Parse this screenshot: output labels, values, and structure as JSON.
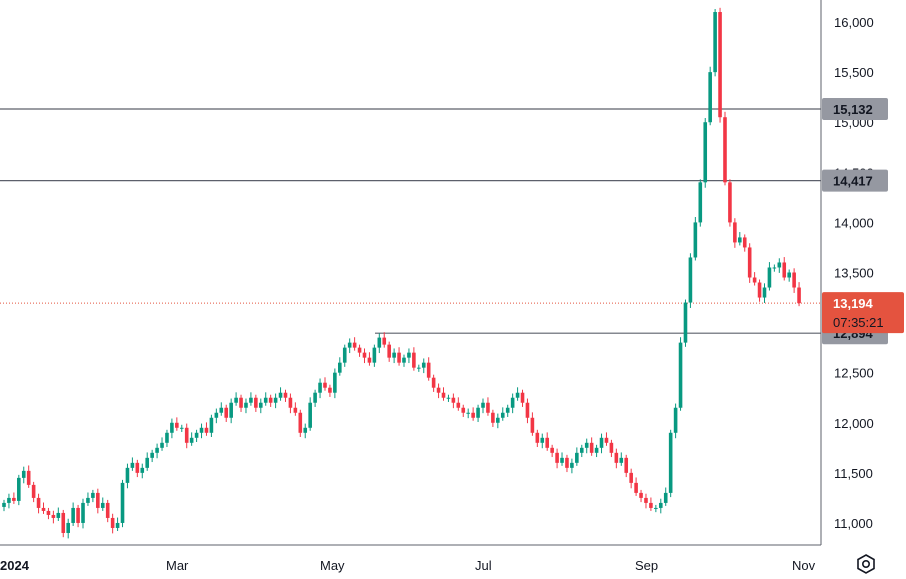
{
  "chart_data": {
    "type": "candlestick",
    "title": "",
    "x_ticks": [
      "2024",
      "Mar",
      "May",
      "Jul",
      "Sep",
      "Nov"
    ],
    "y_ticks": [
      11000,
      11500,
      12000,
      12500,
      13000,
      13500,
      14000,
      14500,
      15000,
      15500,
      16000
    ],
    "y_tick_labels": [
      "11,000",
      "11,500",
      "12,000",
      "12,500",
      "13,000",
      "13,500",
      "14,000",
      "14,500",
      "15,000",
      "15,500",
      "16,000"
    ],
    "ylim": [
      10780,
      16220
    ],
    "grid": false,
    "horizontal_levels": [
      {
        "value": 15132,
        "label": "15,132"
      },
      {
        "value": 14417,
        "label": "14,417"
      },
      {
        "value": 12894,
        "label": "12,894"
      }
    ],
    "last_price": {
      "value": 13194,
      "label": "13,194",
      "countdown": "07:35:21"
    },
    "colors": {
      "up": "#089981",
      "down": "#f23645",
      "last_price": "#e4533f",
      "level_line": "#5d606b",
      "level_tag": "#9598a1"
    },
    "closes": [
      11200,
      11250,
      11220,
      11450,
      11520,
      11380,
      11250,
      11150,
      11120,
      11080,
      11050,
      11100,
      10900,
      11000,
      11150,
      11000,
      11200,
      11250,
      11300,
      11150,
      11200,
      11050,
      10950,
      11000,
      11400,
      11550,
      11600,
      11500,
      11550,
      11650,
      11700,
      11750,
      11800,
      11900,
      12000,
      11950,
      11950,
      11800,
      11850,
      11900,
      11950,
      11900,
      12050,
      12100,
      12150,
      12050,
      12200,
      12250,
      12150,
      12200,
      12250,
      12150,
      12200,
      12250,
      12200,
      12250,
      12300,
      12250,
      12150,
      12100,
      11900,
      11950,
      12200,
      12300,
      12400,
      12350,
      12300,
      12500,
      12600,
      12750,
      12800,
      12750,
      12700,
      12650,
      12600,
      12750,
      12850,
      12780,
      12650,
      12700,
      12600,
      12650,
      12700,
      12550,
      12550,
      12600,
      12450,
      12350,
      12300,
      12250,
      12250,
      12200,
      12150,
      12100,
      12100,
      12050,
      12150,
      12200,
      12100,
      12000,
      12050,
      12100,
      12150,
      12250,
      12300,
      12200,
      12050,
      11900,
      11800,
      11850,
      11750,
      11700,
      11600,
      11650,
      11550,
      11600,
      11700,
      11750,
      11800,
      11700,
      11750,
      11850,
      11800,
      11700,
      11600,
      11650,
      11500,
      11400,
      11300,
      11250,
      11200,
      11150,
      11150,
      11200,
      11300,
      11900,
      12150,
      12800,
      13200,
      13650,
      14000,
      14400,
      15000,
      15500,
      16100,
      15050,
      14400,
      14000,
      13800,
      13850,
      13750,
      13450,
      13400,
      13250,
      13350,
      13550,
      13550,
      13600,
      13450,
      13500,
      13350,
      13194
    ],
    "axis_labels": {
      "xlabel": "",
      "ylabel": ""
    }
  },
  "toolbar": {
    "settings_icon": "gear-icon"
  }
}
